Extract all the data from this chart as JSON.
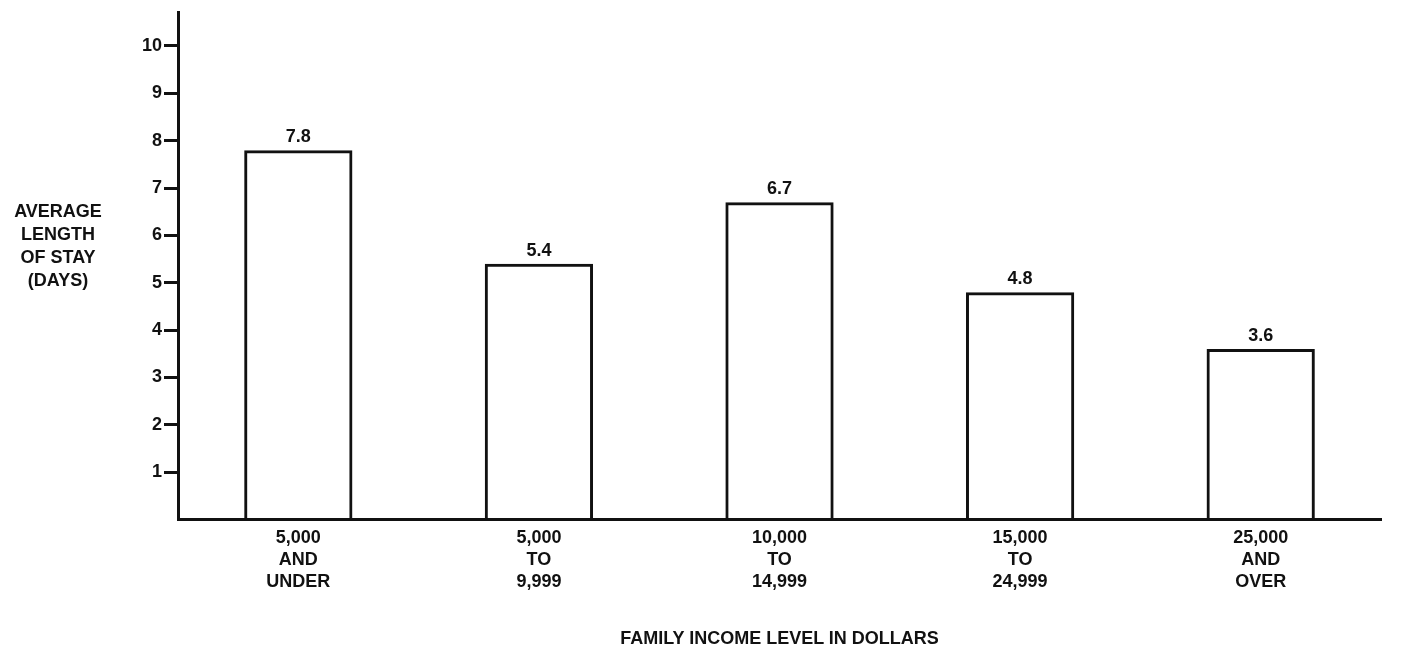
{
  "chart_data": {
    "type": "bar",
    "xlabel": "FAMILY INCOME LEVEL IN DOLLARS",
    "ylabel": "AVERAGE LENGTH OF STAY (DAYS)",
    "categories": [
      "5,000 AND UNDER",
      "5,000 TO 9,999",
      "10,000 TO 14,999",
      "15,000 TO 24,999",
      "25,000 AND OVER"
    ],
    "values": [
      7.8,
      5.4,
      6.7,
      4.8,
      3.6
    ],
    "color": "#111111",
    "data_labels": true,
    "grid": false,
    "legend": false,
    "ylim": [
      0,
      10.7
    ],
    "yticks": [
      1,
      2,
      3,
      4,
      5,
      6,
      7,
      8,
      9,
      10
    ]
  }
}
